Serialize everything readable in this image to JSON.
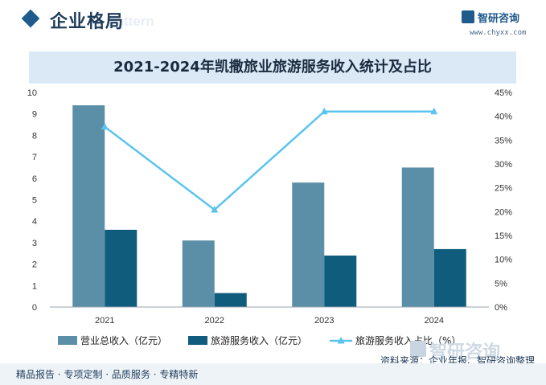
{
  "header": {
    "section_title": "企业格局",
    "ghost_text": "e pattern"
  },
  "logo": {
    "name": "智研咨询",
    "url": "www.chyxx.com",
    "icon": "company-logo-icon"
  },
  "chart_data": {
    "type": "bar",
    "title": "2021-2024年凯撒旅业旅游服务收入统计及占比",
    "categories": [
      "2021",
      "2022",
      "2023",
      "2024"
    ],
    "series": [
      {
        "name": "营业总收入（亿元）",
        "type": "bar",
        "axis": "left",
        "color": "#5b8fa8",
        "values": [
          9.4,
          3.1,
          5.8,
          6.5
        ]
      },
      {
        "name": "旅游服务收入（亿元）",
        "type": "bar",
        "axis": "left",
        "color": "#0f5c7d",
        "values": [
          3.6,
          0.65,
          2.4,
          2.7
        ]
      },
      {
        "name": "旅游服务收入占比（%）",
        "type": "line",
        "axis": "right",
        "color": "#5bc4ee",
        "values": [
          37.8,
          20.4,
          41.0,
          41.0
        ]
      }
    ],
    "left_axis": {
      "min": 0,
      "max": 10,
      "ticks": [
        "0",
        "1",
        "2",
        "3",
        "4",
        "5",
        "6",
        "7",
        "8",
        "9",
        "10"
      ]
    },
    "right_axis": {
      "min": 0,
      "max": 45,
      "ticks": [
        "0%",
        "5%",
        "10%",
        "15%",
        "20%",
        "25%",
        "30%",
        "35%",
        "40%",
        "45%"
      ]
    },
    "grid": false,
    "legend": "bottom"
  },
  "footer": {
    "left_text": "精品报告 · 专项定制 · 品质服务 · 专精特新",
    "source": "资料来源：企业年报、智研咨询整理",
    "watermark": "智研咨询"
  }
}
